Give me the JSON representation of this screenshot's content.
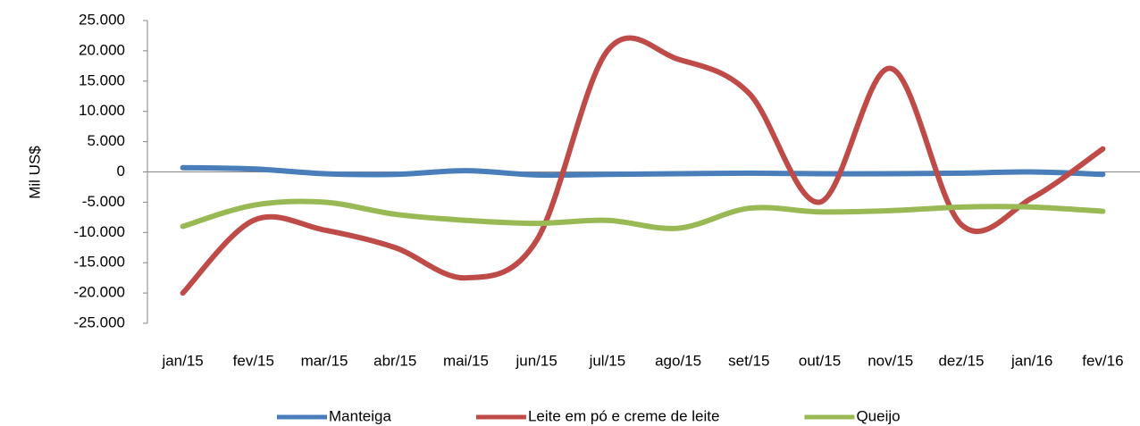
{
  "chart_data": {
    "type": "line",
    "smooth": true,
    "y_label": "Mil US$",
    "categories": [
      "jan/15",
      "fev/15",
      "mar/15",
      "abr/15",
      "mai/15",
      "jun/15",
      "jul/15",
      "ago/15",
      "set/15",
      "out/15",
      "nov/15",
      "dez/15",
      "jan/16",
      "fev/16"
    ],
    "series": [
      {
        "name": "Manteiga",
        "color": "#4a7ebb",
        "values": [
          700,
          500,
          -300,
          -400,
          200,
          -500,
          -400,
          -300,
          -200,
          -300,
          -300,
          -200,
          0,
          -400
        ]
      },
      {
        "name": "Leite em pó e creme de leite",
        "color": "#be4b48",
        "values": [
          -20000,
          -8000,
          -9600,
          -12500,
          -17500,
          -11300,
          20000,
          18600,
          13000,
          -5000,
          17100,
          -8700,
          -4300,
          3800
        ]
      },
      {
        "name": "Queijo",
        "color": "#98b954",
        "values": [
          -9000,
          -5500,
          -5000,
          -7000,
          -8000,
          -8500,
          -8000,
          -9300,
          -6000,
          -6600,
          -6400,
          -5800,
          -5800,
          -6500
        ]
      }
    ],
    "ylim": [
      -25000,
      25000
    ],
    "yticks": [
      {
        "value": -25000,
        "label": "-25.000"
      },
      {
        "value": -20000,
        "label": "-20.000"
      },
      {
        "value": -15000,
        "label": "-15.000"
      },
      {
        "value": -10000,
        "label": "-10.000"
      },
      {
        "value": -5000,
        "label": "-5.000"
      },
      0,
      {
        "value": 5000,
        "label": "5.000"
      },
      {
        "value": 10000,
        "label": "10.000"
      },
      {
        "value": 15000,
        "label": "15.000"
      },
      {
        "value": 20000,
        "label": "20.000"
      },
      {
        "value": 25000,
        "label": "25.000"
      }
    ],
    "legend": "bottom"
  }
}
